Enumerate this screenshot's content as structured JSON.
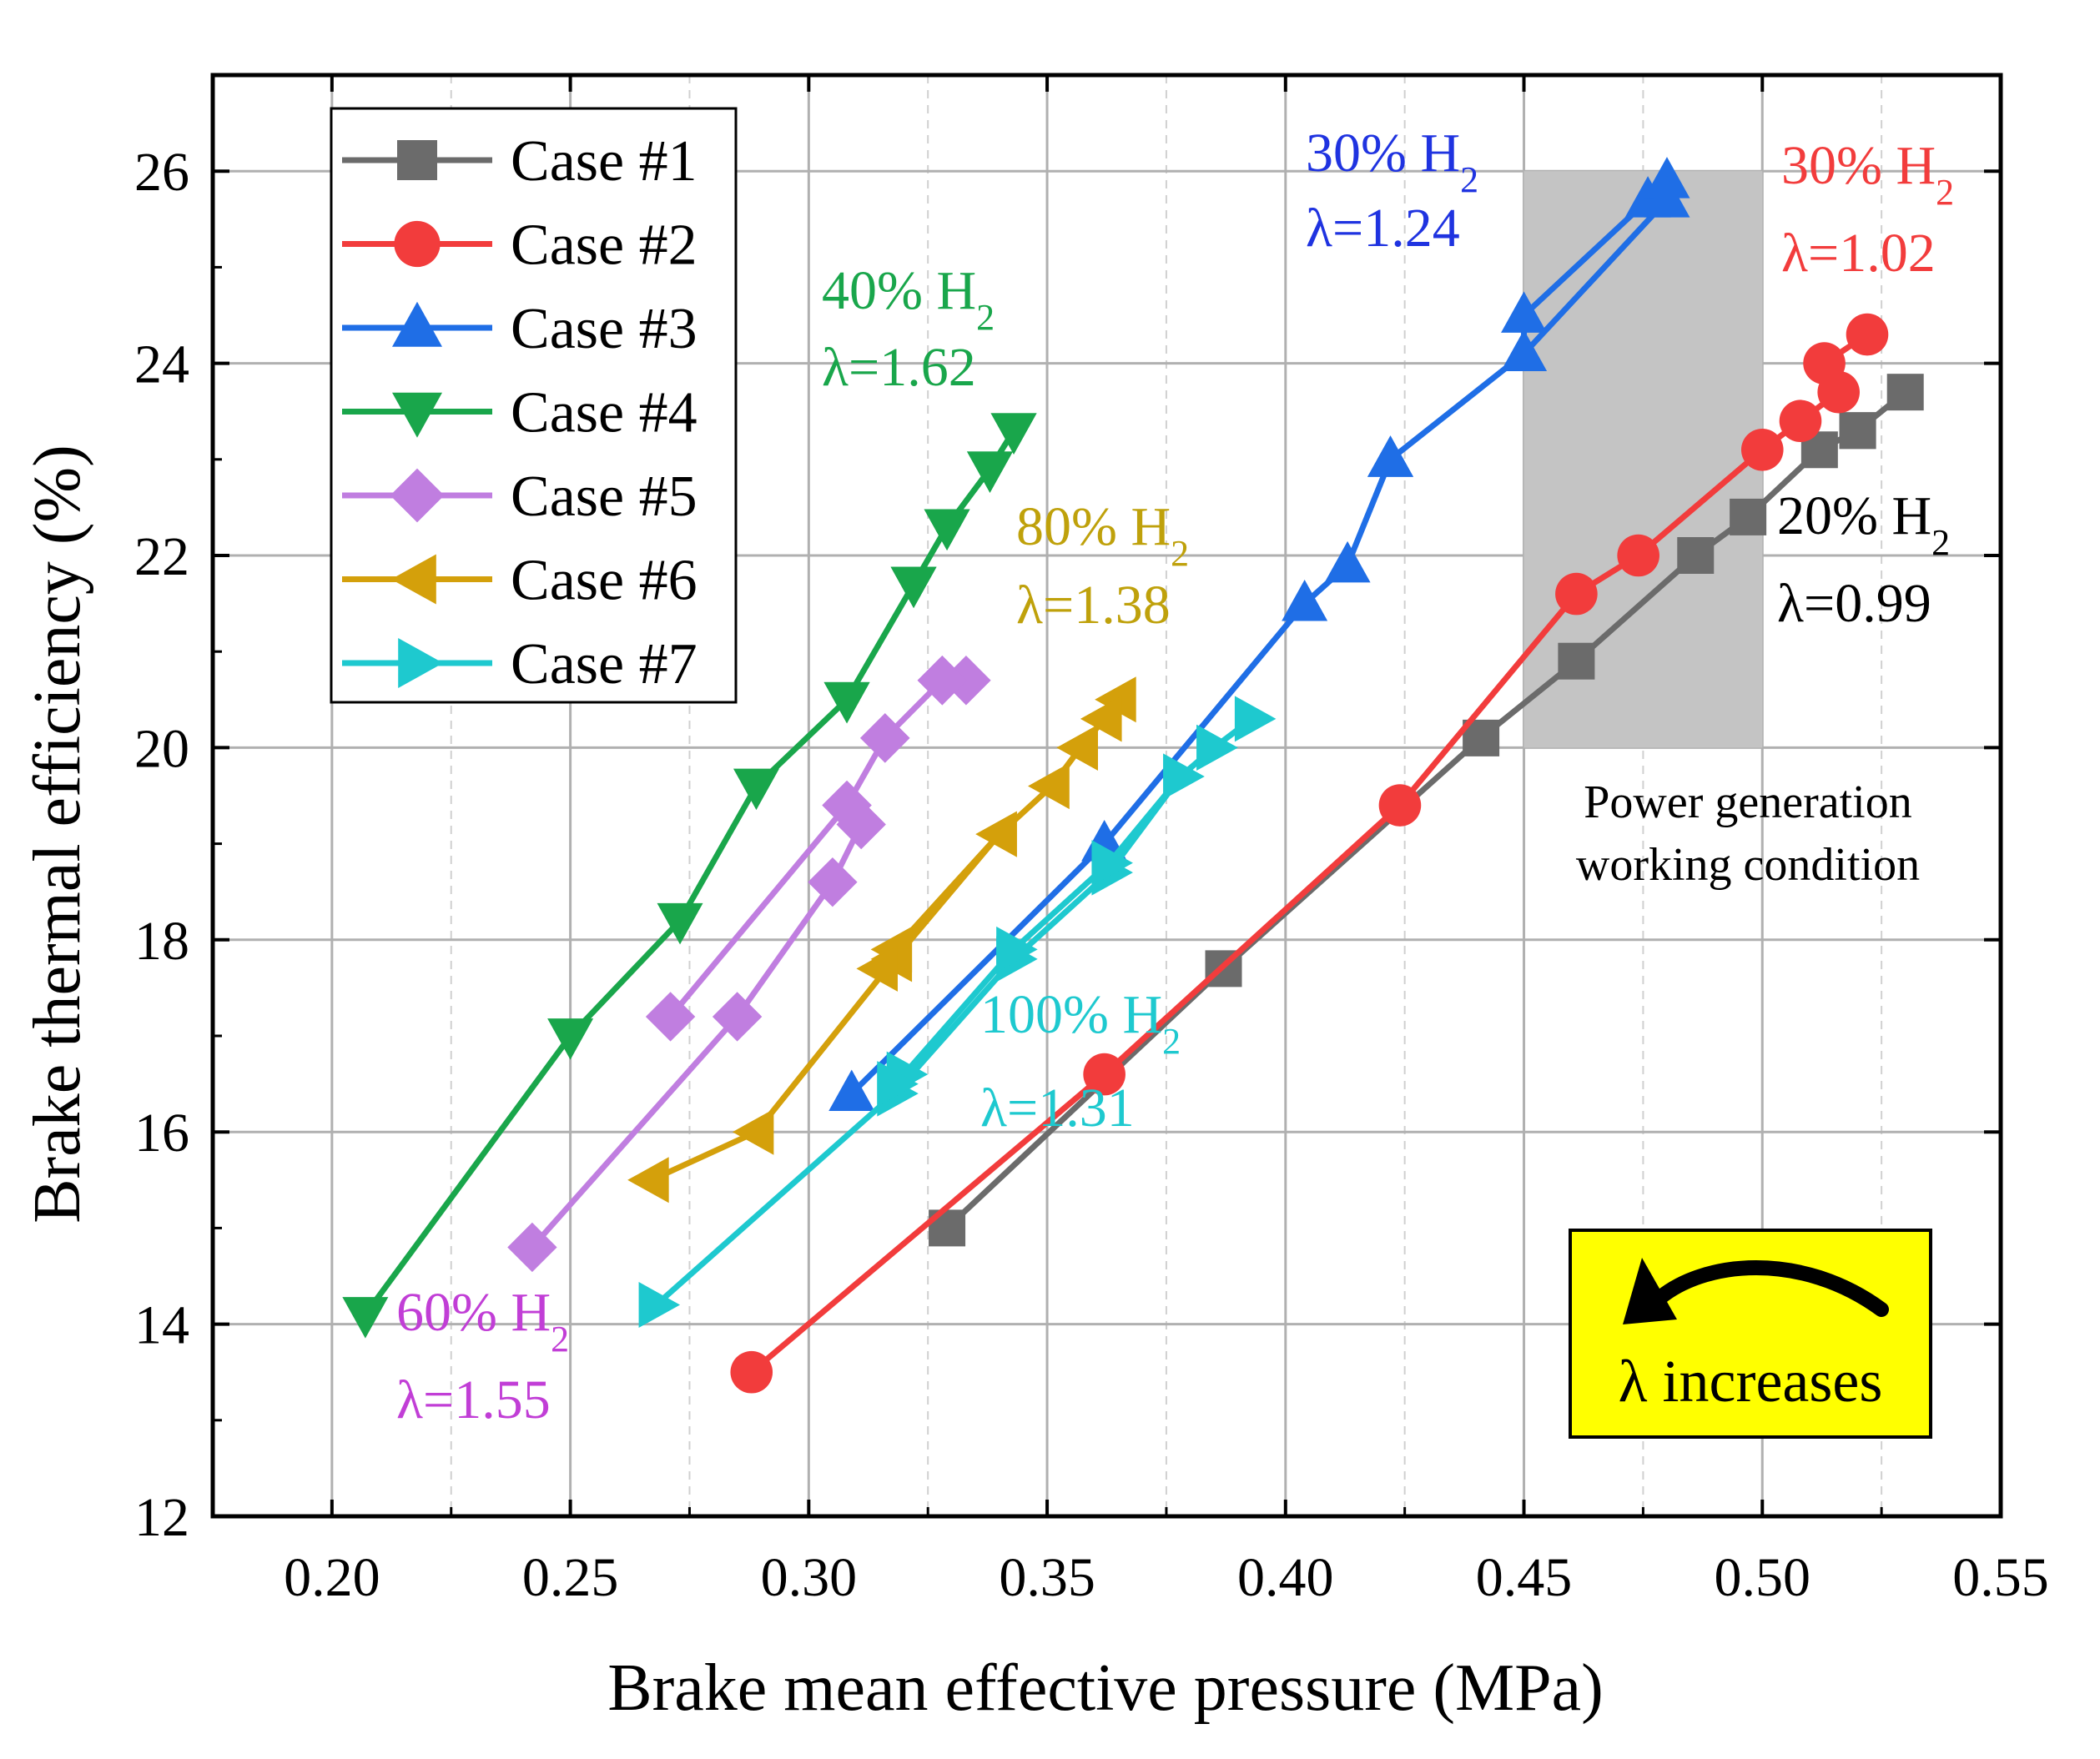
{
  "chart_data": {
    "type": "line",
    "xlabel": "Brake mean effective pressure (MPa)",
    "ylabel": "Brake thermal efficiency (%)",
    "xlim": [
      0.175,
      0.55
    ],
    "ylim": [
      12,
      27
    ],
    "x_ticks": [
      "0.20",
      "0.25",
      "0.30",
      "0.35",
      "0.40",
      "0.45",
      "0.50",
      "0.55"
    ],
    "y_ticks": [
      "12",
      "14",
      "16",
      "18",
      "20",
      "22",
      "24",
      "26"
    ],
    "grid": true,
    "legend_position": "top-left",
    "series": [
      {
        "name": "Case #1",
        "color": "#6b6b6b",
        "marker": "square",
        "x": [
          0.329,
          0.387,
          0.441,
          0.461,
          0.486,
          0.497,
          0.512,
          0.52,
          0.53,
          0.52
        ],
        "y": [
          15.0,
          17.7,
          20.1,
          20.9,
          22.0,
          22.4,
          23.1,
          23.3,
          23.7,
          23.3
        ]
      },
      {
        "name": "Case #2",
        "color": "#f23c3c",
        "marker": "circle",
        "x": [
          0.288,
          0.362,
          0.424,
          0.461,
          0.474,
          0.5,
          0.508,
          0.516,
          0.513,
          0.522
        ],
        "y": [
          13.5,
          16.6,
          19.4,
          21.6,
          22.0,
          23.1,
          23.4,
          23.7,
          24.0,
          24.3
        ]
      },
      {
        "name": "Case #3",
        "color": "#1f6ee6",
        "marker": "triangle-up",
        "x": [
          0.309,
          0.362,
          0.404,
          0.413,
          0.422,
          0.45,
          0.45,
          0.476,
          0.48,
          0.48,
          0.45,
          0.422
        ],
        "y": [
          16.4,
          19.0,
          21.5,
          21.9,
          23.0,
          24.1,
          24.5,
          25.7,
          25.9,
          25.7,
          24.1,
          23.0
        ]
      },
      {
        "name": "Case #4",
        "color": "#19a64b",
        "marker": "triangle-down",
        "x": [
          0.207,
          0.25,
          0.273,
          0.289,
          0.308,
          0.322,
          0.329,
          0.338,
          0.343,
          0.343,
          0.338,
          0.329,
          0.322,
          0.308
        ],
        "y": [
          14.1,
          17.0,
          18.2,
          19.6,
          20.5,
          21.7,
          22.3,
          22.9,
          23.3,
          23.3,
          22.9,
          22.3,
          21.7,
          20.5
        ]
      },
      {
        "name": "Case #5",
        "color": "#c07ee0",
        "marker": "diamond",
        "x": [
          0.242,
          0.285,
          0.305,
          0.311,
          0.308,
          0.316,
          0.328,
          0.333,
          0.328,
          0.316,
          0.308,
          0.271
        ],
        "y": [
          14.8,
          17.2,
          18.6,
          19.2,
          19.4,
          20.1,
          20.7,
          20.7,
          20.7,
          20.1,
          19.4,
          17.2
        ]
      },
      {
        "name": "Case #6",
        "color": "#d4a00b",
        "marker": "triangle-left",
        "x": [
          0.267,
          0.289,
          0.318,
          0.34,
          0.351,
          0.357,
          0.362,
          0.365,
          0.362,
          0.357,
          0.351,
          0.34,
          0.318,
          0.315
        ],
        "y": [
          15.5,
          16.0,
          17.8,
          19.1,
          19.6,
          20.0,
          20.3,
          20.5,
          20.3,
          20.0,
          19.6,
          19.1,
          17.9,
          17.7
        ]
      },
      {
        "name": "Case #7",
        "color": "#1ec9cf",
        "marker": "triangle-right",
        "x": [
          0.268,
          0.318,
          0.343,
          0.363,
          0.378,
          0.385,
          0.393,
          0.385,
          0.378,
          0.363,
          0.343,
          0.32,
          0.318
        ],
        "y": [
          14.2,
          16.4,
          17.8,
          18.7,
          19.7,
          20.0,
          20.3,
          20.0,
          19.7,
          18.8,
          17.9,
          16.6,
          16.5
        ]
      }
    ],
    "annotations": [
      {
        "h2": "30% H",
        "sub": "2",
        "lambda": "λ=1.24",
        "color": "#1f33e0"
      },
      {
        "h2": "30% H",
        "sub": "2",
        "lambda": "λ=1.02",
        "color": "#f23c3c"
      },
      {
        "h2": "40% H",
        "sub": "2",
        "lambda": "λ=1.62",
        "color": "#19a64b"
      },
      {
        "h2": "80% H",
        "sub": "2",
        "lambda": "λ=1.38",
        "color": "#bfa10b"
      },
      {
        "h2": "20% H",
        "sub": "2",
        "lambda": "λ=0.99",
        "color": "#000000"
      },
      {
        "h2": "100% H",
        "sub": "2",
        "lambda": "λ=1.31",
        "color": "#1ec9cf"
      },
      {
        "h2": "60% H",
        "sub": "2",
        "lambda": "λ=1.55",
        "color": "#c13ed6"
      }
    ],
    "shaded_region": {
      "x_range": [
        0.45,
        0.5
      ],
      "y_range": [
        20,
        26
      ],
      "label_line1": "Power generation",
      "label_line2": "working condition",
      "color": "#c4c4c4"
    },
    "lambda_box": {
      "text": "λ increases",
      "color": "#ffff00"
    }
  }
}
